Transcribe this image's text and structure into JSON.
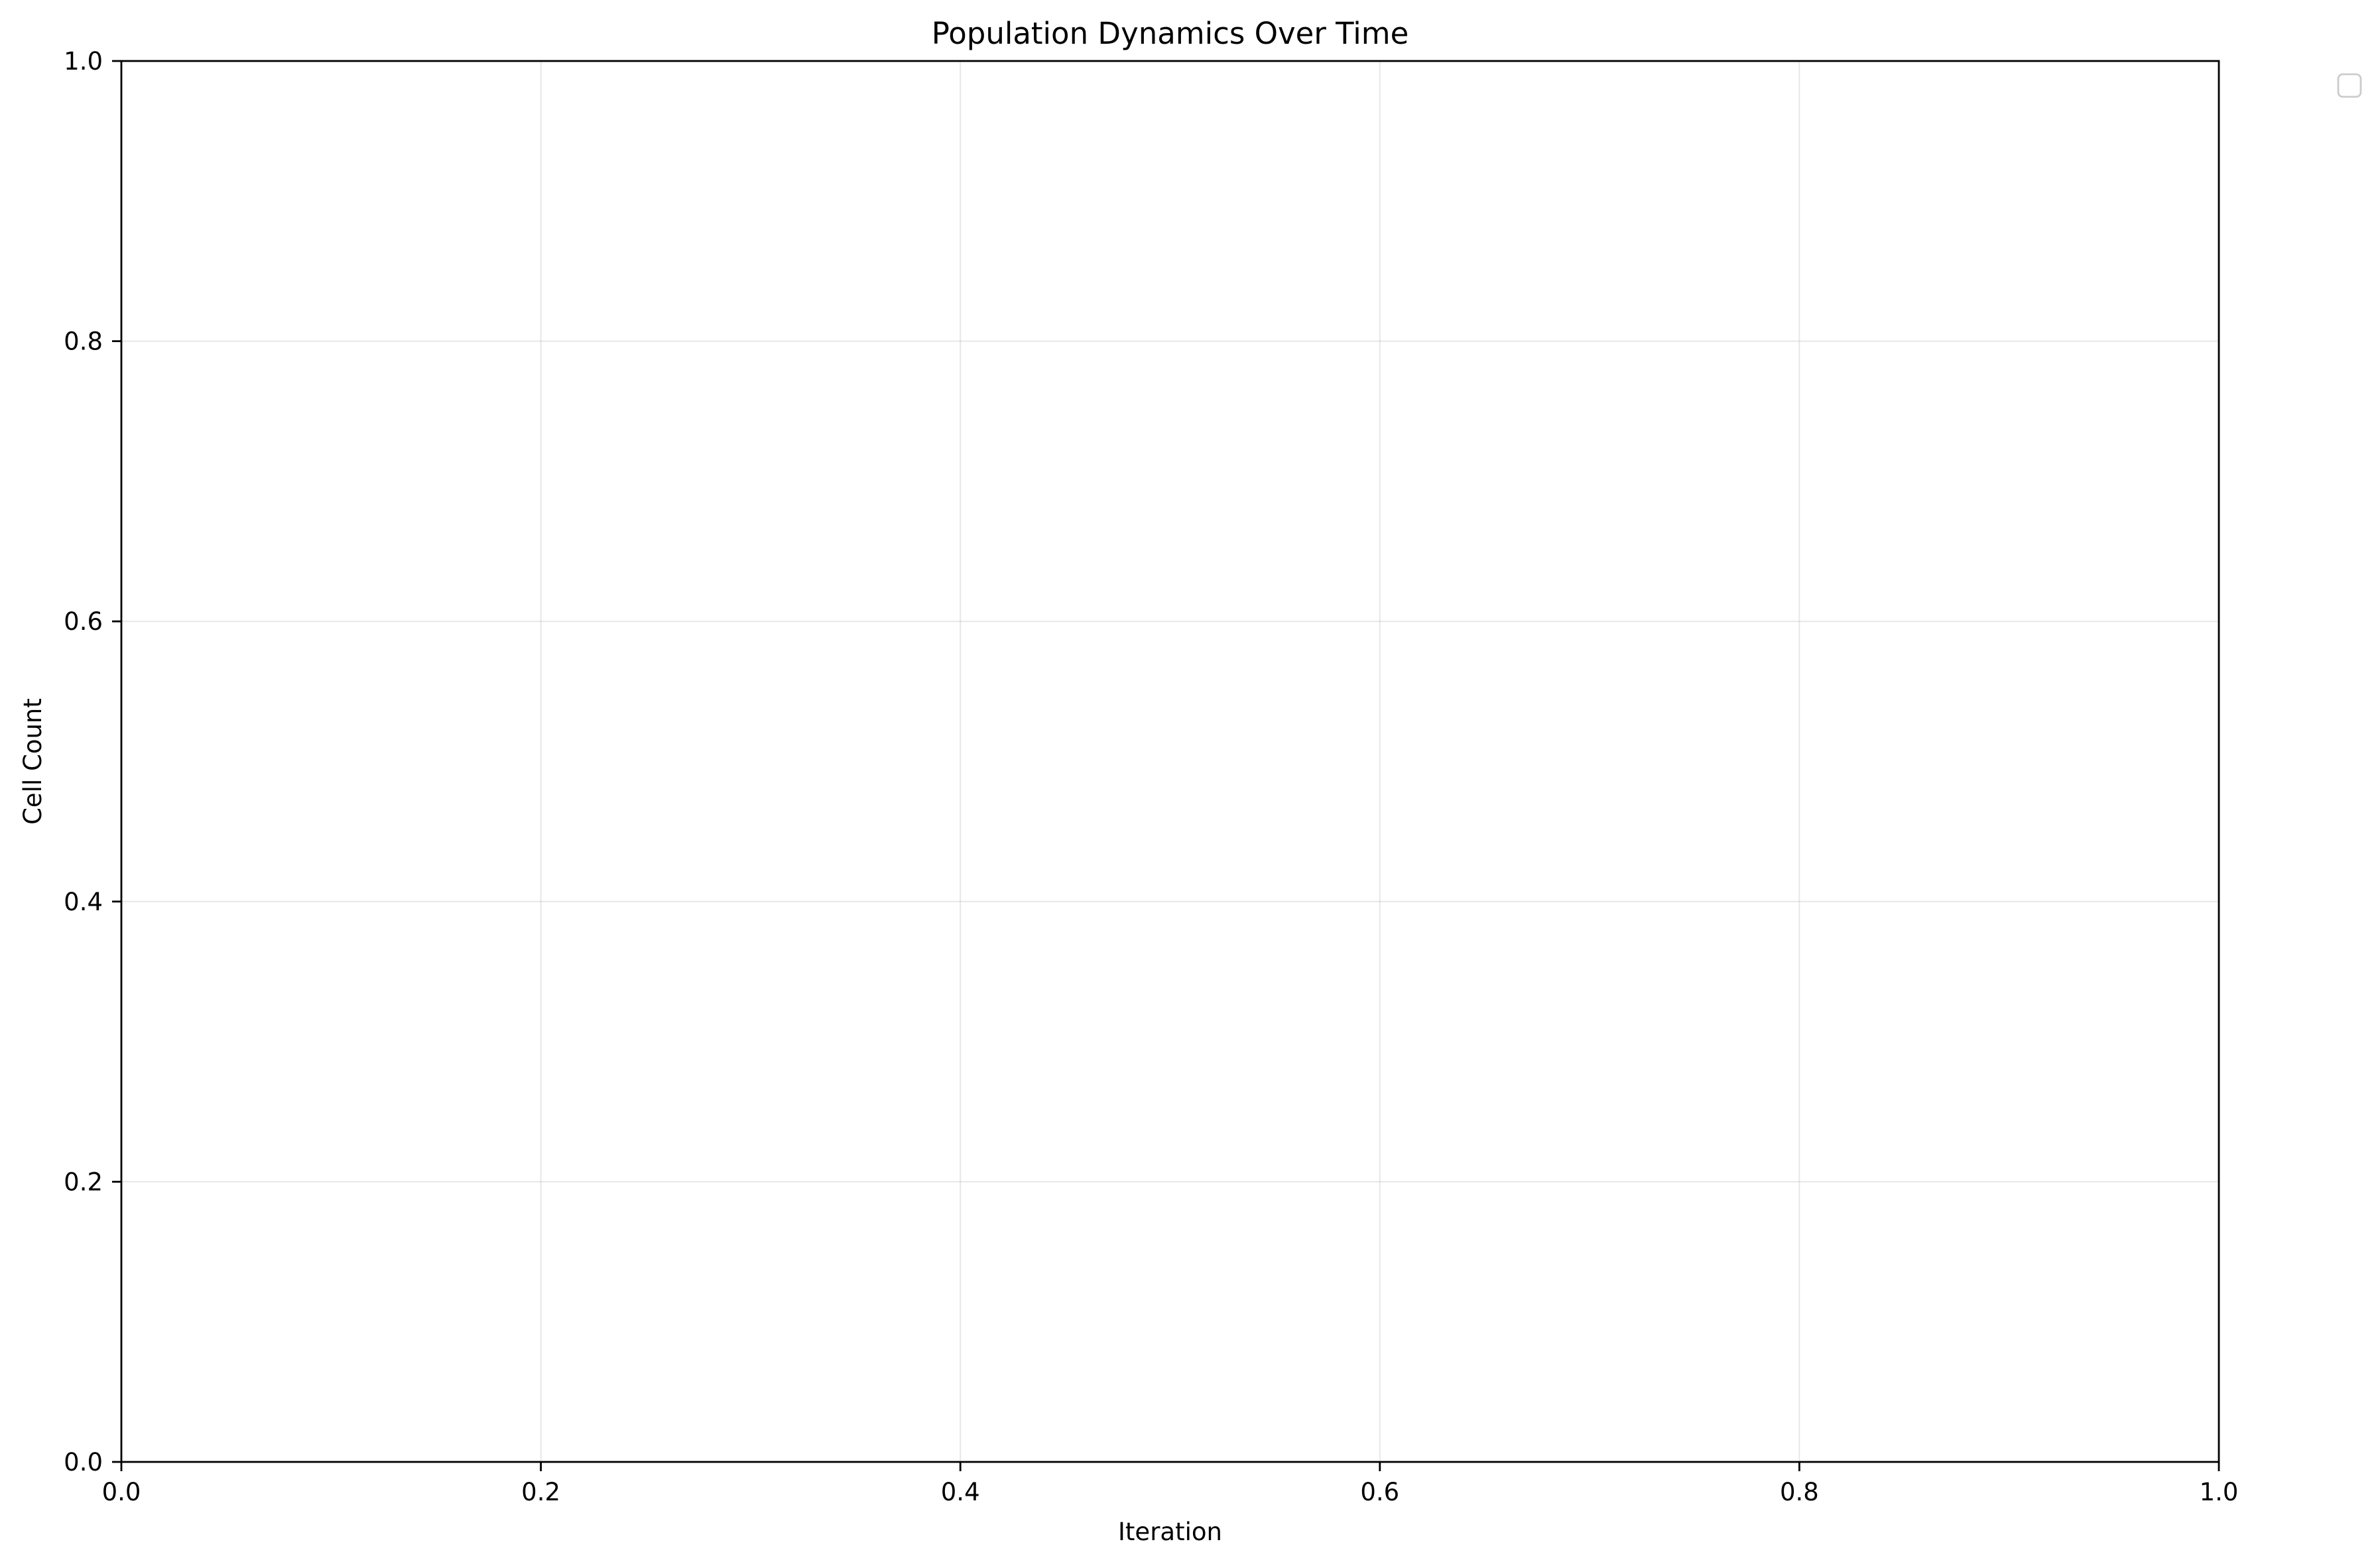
{
  "colors": {
    "grid": "#b0b0b0",
    "axis": "#000000",
    "legend_border": "#cccccc",
    "background": "#ffffff"
  },
  "chart_data": {
    "type": "line",
    "title": "Population Dynamics Over Time",
    "xlabel": "Iteration",
    "ylabel": "Cell Count",
    "xlim": [
      0.0,
      1.0
    ],
    "ylim": [
      0.0,
      1.0
    ],
    "xticks": [
      "0.0",
      "0.2",
      "0.4",
      "0.6",
      "0.8",
      "1.0"
    ],
    "yticks": [
      "0.0",
      "0.2",
      "0.4",
      "0.6",
      "0.8",
      "1.0"
    ],
    "grid": true,
    "legend": {
      "location": "outside top-right",
      "entries": []
    },
    "series": []
  }
}
